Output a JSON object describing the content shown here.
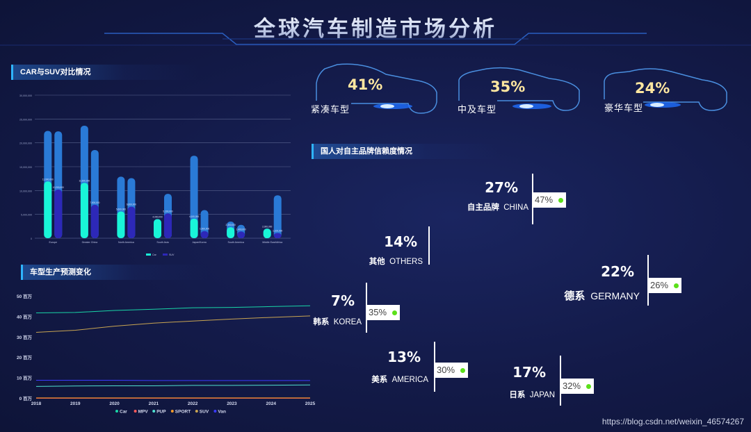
{
  "title": "全球汽车制造市场分析",
  "kpis": [
    {
      "percent": "41%",
      "label": "紧凑车型"
    },
    {
      "percent": "35%",
      "label": "中及车型"
    },
    {
      "percent": "24%",
      "label": "豪华车型"
    }
  ],
  "panels": {
    "car_suv": "CAR与SUV对比情况",
    "forecast": "车型生产预测变化",
    "trust": "国人对自主品牌信赖度情况"
  },
  "trust_items": [
    {
      "percent": "27%",
      "label_cn": "自主品牌",
      "label_en": "CHINA",
      "box": "47%"
    },
    {
      "percent": "14%",
      "label_cn": "其他",
      "label_en": "OTHERS",
      "box": ""
    },
    {
      "percent": "22%",
      "label_cn": "德系",
      "label_en": "GERMANY",
      "box": "26%"
    },
    {
      "percent": "7%",
      "label_cn": "韩系",
      "label_en": "KOREA",
      "box": "35%"
    },
    {
      "percent": "13%",
      "label_cn": "美系",
      "label_en": "AMERICA",
      "box": "30%"
    },
    {
      "percent": "17%",
      "label_cn": "日系",
      "label_en": "JAPAN",
      "box": "32%"
    }
  ],
  "watermark": "https://blog.csdn.net/weixin_46574267",
  "colors": {
    "accent": "#2fb4ff",
    "kpi_text": "#ffe7a0",
    "dot": "#5be01a"
  },
  "chart_data": [
    {
      "type": "bar",
      "title": "CAR与SUV对比情况",
      "categories": [
        "Europe",
        "Greater China",
        "North America",
        "South Asia",
        "Japan/Korea",
        "South America",
        "Middle East/Africa"
      ],
      "series": [
        {
          "name": "Car",
          "values": [
            11900000,
            11600000,
            5600000,
            4000000,
            4100000,
            2300000,
            2000000
          ],
          "total": [
            22500000,
            23600000,
            12900000,
            4000000,
            17300000,
            3500000,
            2000000
          ]
        },
        {
          "name": "SUV",
          "values": [
            10200000,
            7000000,
            6600000,
            5200000,
            1500000,
            1400000,
            1100000
          ],
          "total": [
            22400000,
            18500000,
            12600000,
            9300000,
            5900000,
            2800000,
            9000000
          ]
        }
      ],
      "ylim": [
        0,
        30000000
      ],
      "yticks": [
        "0",
        "5,000,000",
        "10,000,000",
        "15,000,000",
        "20,000,000",
        "25,000,000",
        "30,000,000"
      ],
      "legend": [
        "Car",
        "SUV"
      ],
      "grid": true
    },
    {
      "type": "line",
      "title": "车型生产预测变化",
      "x": [
        "2018",
        "2019",
        "2020",
        "2021",
        "2022",
        "2023",
        "2024",
        "2025"
      ],
      "series": [
        {
          "name": "Car",
          "color": "#19d6a7",
          "values": [
            42,
            42.2,
            43.2,
            43.8,
            44.5,
            44.7,
            45.1,
            45.5
          ]
        },
        {
          "name": "MPV",
          "color": "#ff5a5a",
          "values": [
            0.2,
            0.2,
            0.2,
            0.2,
            0.2,
            0.2,
            0.2,
            0.2
          ]
        },
        {
          "name": "PUP",
          "color": "#4fe0d0",
          "values": [
            6,
            6.2,
            6.3,
            6.3,
            6.5,
            6.5,
            6.6,
            6.7
          ]
        },
        {
          "name": "SPORT",
          "color": "#f39a2a",
          "values": [
            0.4,
            0.4,
            0.4,
            0.4,
            0.4,
            0.4,
            0.4,
            0.4
          ]
        },
        {
          "name": "SUV",
          "color": "#c9a552",
          "values": [
            32.5,
            33.5,
            35.5,
            37,
            38,
            39,
            39.8,
            40.5
          ]
        },
        {
          "name": "Van",
          "color": "#3a3aff",
          "values": [
            9,
            9,
            9,
            8.9,
            8.9,
            8.9,
            8.9,
            8.9
          ]
        }
      ],
      "yticks": [
        "0 百万",
        "10 百万",
        "20 百万",
        "30 百万",
        "40 百万",
        "50 百万"
      ],
      "ylim": [
        0,
        50
      ],
      "legend": [
        "Car",
        "MPV",
        "PUP",
        "SPORT",
        "SUV",
        "Van"
      ],
      "grid": false
    }
  ]
}
